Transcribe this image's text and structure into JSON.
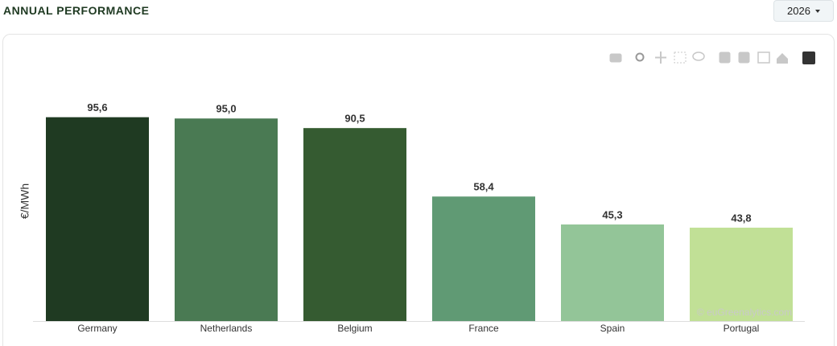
{
  "header": {
    "title": "ANNUAL PERFORMANCE",
    "year": "2026"
  },
  "chart_data": {
    "type": "bar",
    "y_label": "€/MWh",
    "categories": [
      "Germany",
      "Netherlands",
      "Belgium",
      "France",
      "Spain",
      "Portugal"
    ],
    "values": [
      95.6,
      95.0,
      90.5,
      58.4,
      45.3,
      43.8
    ],
    "value_labels": [
      "95,6",
      "95,0",
      "90,5",
      "58,4",
      "45,3",
      "43,8"
    ],
    "colors": [
      "#1f3a22",
      "#4a7a53",
      "#355b31",
      "#609a74",
      "#93c598",
      "#c1e096"
    ],
    "ylim": [
      0,
      100
    ],
    "watermark": "© euGreenalytics.com"
  }
}
